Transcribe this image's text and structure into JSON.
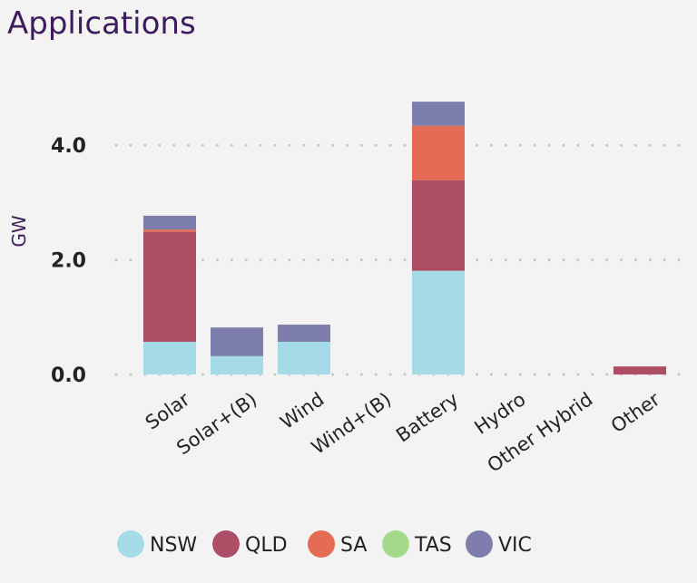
{
  "title": "Applications",
  "chart_data": {
    "type": "bar",
    "stacked": true,
    "ylabel": "GW",
    "xlabel": "",
    "ylim": [
      0,
      4.9
    ],
    "yticks": [
      "0.0",
      "2.0",
      "4.0"
    ],
    "ytick_values": [
      0,
      2,
      4
    ],
    "grid": true,
    "legend_position": "bottom",
    "categories": [
      "Solar",
      "Solar+(B)",
      "Wind",
      "Wind+(B)",
      "Battery",
      "Hydro",
      "Other Hybrid",
      "Other"
    ],
    "series": [
      {
        "name": "NSW",
        "color": "#a5dbe6",
        "values": [
          0.57,
          0.32,
          0.57,
          0,
          1.81,
          0,
          0,
          0
        ]
      },
      {
        "name": "QLD",
        "color": "#ad4e66",
        "values": [
          1.92,
          0,
          0,
          0,
          1.58,
          0,
          0,
          0.14
        ]
      },
      {
        "name": "SA",
        "color": "#e46b54",
        "values": [
          0.04,
          0,
          0,
          0,
          0.95,
          0,
          0,
          0
        ]
      },
      {
        "name": "TAS",
        "color": "#a2d98a",
        "values": [
          0,
          0,
          0,
          0,
          0,
          0,
          0,
          0
        ]
      },
      {
        "name": "VIC",
        "color": "#7d7eab",
        "values": [
          0.24,
          0.5,
          0.3,
          0,
          0.42,
          0,
          0,
          0
        ]
      }
    ]
  }
}
